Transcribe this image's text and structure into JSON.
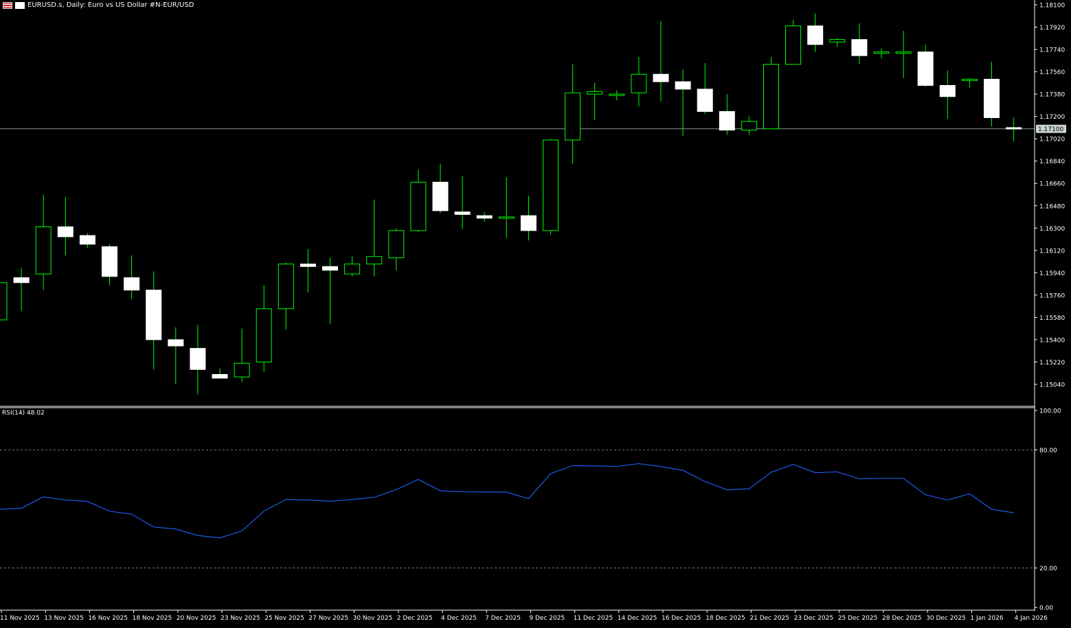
{
  "header": {
    "title": "EURUSD.s, Daily:  Euro vs US Dollar #N-EUR/USD",
    "flag_icon": "us-eu-flag-icon",
    "menu_icon": "chart-menu-icon"
  },
  "rsi": {
    "label": "RSI(14) 48.02",
    "levels": [
      "100.00",
      "80.00",
      "20.00",
      "0.00"
    ]
  },
  "price_axis": {
    "ticks": [
      "1.18100",
      "1.17920",
      "1.17740",
      "1.17560",
      "1.17380",
      "1.17200",
      "1.17020",
      "1.16840",
      "1.16660",
      "1.16480",
      "1.16300",
      "1.16120",
      "1.15940",
      "1.15760",
      "1.15580",
      "1.15400",
      "1.15220",
      "1.15040"
    ],
    "current": "1.17100"
  },
  "time_axis": [
    "11 Nov 2025",
    "13 Nov 2025",
    "16 Nov 2025",
    "18 Nov 2025",
    "20 Nov 2025",
    "23 Nov 2025",
    "25 Nov 2025",
    "27 Nov 2025",
    "30 Nov 2025",
    "2 Dec 2025",
    "4 Dec 2025",
    "7 Dec 2025",
    "9 Dec 2025",
    "11 Dec 2025",
    "14 Dec 2025",
    "16 Dec 2025",
    "18 Dec 2025",
    "21 Dec 2025",
    "23 Dec 2025",
    "25 Dec 2025",
    "28 Dec 2025",
    "30 Dec 2025",
    "1 Jan 2026",
    "4 Jan 2026"
  ],
  "colors": {
    "bull_outline": "#00ff00",
    "body": "#ffffff",
    "wick": "#00ff00",
    "rsi_line": "#1e64ff",
    "grid": "#a0a0a0",
    "text": "#ffffff"
  },
  "chart_data": [
    {
      "type": "candlestick",
      "symbol": "EURUSD.s",
      "timeframe": "Daily",
      "ylim": [
        1.15,
        1.181
      ],
      "current_price": 1.171,
      "candles": [
        {
          "o": 1.1556,
          "h": 1.1589,
          "l": 1.1556,
          "c": 1.1586
        },
        {
          "o": 1.159,
          "h": 1.1598,
          "l": 1.1563,
          "c": 1.1586
        },
        {
          "o": 1.1593,
          "h": 1.1657,
          "l": 1.158,
          "c": 1.1631
        },
        {
          "o": 1.1631,
          "h": 1.1655,
          "l": 1.1608,
          "c": 1.1623
        },
        {
          "o": 1.1624,
          "h": 1.1626,
          "l": 1.1614,
          "c": 1.1617
        },
        {
          "o": 1.1615,
          "h": 1.1617,
          "l": 1.1584,
          "c": 1.1591
        },
        {
          "o": 1.159,
          "h": 1.1608,
          "l": 1.1573,
          "c": 1.158
        },
        {
          "o": 1.158,
          "h": 1.1595,
          "l": 1.1516,
          "c": 1.154
        },
        {
          "o": 1.154,
          "h": 1.155,
          "l": 1.1504,
          "c": 1.1535
        },
        {
          "o": 1.1533,
          "h": 1.1552,
          "l": 1.1496,
          "c": 1.1516
        },
        {
          "o": 1.1512,
          "h": 1.1517,
          "l": 1.1509,
          "c": 1.1509
        },
        {
          "o": 1.151,
          "h": 1.1549,
          "l": 1.1506,
          "c": 1.1521
        },
        {
          "o": 1.1522,
          "h": 1.1584,
          "l": 1.1514,
          "c": 1.1565
        },
        {
          "o": 1.1565,
          "h": 1.1602,
          "l": 1.1548,
          "c": 1.1601
        },
        {
          "o": 1.1601,
          "h": 1.1613,
          "l": 1.1578,
          "c": 1.1599
        },
        {
          "o": 1.1599,
          "h": 1.1606,
          "l": 1.1553,
          "c": 1.1596
        },
        {
          "o": 1.1593,
          "h": 1.1607,
          "l": 1.1591,
          "c": 1.1601
        },
        {
          "o": 1.1601,
          "h": 1.1653,
          "l": 1.1591,
          "c": 1.1607
        },
        {
          "o": 1.1606,
          "h": 1.163,
          "l": 1.1596,
          "c": 1.1628
        },
        {
          "o": 1.1628,
          "h": 1.1677,
          "l": 1.1627,
          "c": 1.1667
        },
        {
          "o": 1.1667,
          "h": 1.1682,
          "l": 1.1642,
          "c": 1.1644
        },
        {
          "o": 1.1643,
          "h": 1.1672,
          "l": 1.1629,
          "c": 1.1641
        },
        {
          "o": 1.164,
          "h": 1.1643,
          "l": 1.1635,
          "c": 1.1638
        },
        {
          "o": 1.1638,
          "h": 1.1671,
          "l": 1.1622,
          "c": 1.1639
        },
        {
          "o": 1.164,
          "h": 1.1656,
          "l": 1.162,
          "c": 1.1628
        },
        {
          "o": 1.1628,
          "h": 1.1702,
          "l": 1.1625,
          "c": 1.1701
        },
        {
          "o": 1.1701,
          "h": 1.1762,
          "l": 1.1682,
          "c": 1.1739
        },
        {
          "o": 1.1738,
          "h": 1.1747,
          "l": 1.1717,
          "c": 1.174
        },
        {
          "o": 1.1737,
          "h": 1.1741,
          "l": 1.1733,
          "c": 1.1738
        },
        {
          "o": 1.1739,
          "h": 1.1768,
          "l": 1.1728,
          "c": 1.1754
        },
        {
          "o": 1.1754,
          "h": 1.1797,
          "l": 1.1732,
          "c": 1.1748
        },
        {
          "o": 1.1748,
          "h": 1.1758,
          "l": 1.1704,
          "c": 1.1742
        },
        {
          "o": 1.1742,
          "h": 1.1763,
          "l": 1.1722,
          "c": 1.1724
        },
        {
          "o": 1.1724,
          "h": 1.1738,
          "l": 1.1705,
          "c": 1.1709
        },
        {
          "o": 1.1709,
          "h": 1.172,
          "l": 1.1705,
          "c": 1.1716
        },
        {
          "o": 1.171,
          "h": 1.1768,
          "l": 1.171,
          "c": 1.1762
        },
        {
          "o": 1.1762,
          "h": 1.1798,
          "l": 1.1762,
          "c": 1.1793
        },
        {
          "o": 1.1793,
          "h": 1.1803,
          "l": 1.1772,
          "c": 1.1778
        },
        {
          "o": 1.178,
          "h": 1.1783,
          "l": 1.1776,
          "c": 1.1782
        },
        {
          "o": 1.1782,
          "h": 1.1795,
          "l": 1.1762,
          "c": 1.1769
        },
        {
          "o": 1.1771,
          "h": 1.1775,
          "l": 1.1767,
          "c": 1.1772
        },
        {
          "o": 1.1772,
          "h": 1.1789,
          "l": 1.1751,
          "c": 1.1772
        },
        {
          "o": 1.1772,
          "h": 1.1778,
          "l": 1.1744,
          "c": 1.1745
        },
        {
          "o": 1.1745,
          "h": 1.1757,
          "l": 1.1718,
          "c": 1.1736
        },
        {
          "o": 1.1749,
          "h": 1.1751,
          "l": 1.1743,
          "c": 1.175
        },
        {
          "o": 1.175,
          "h": 1.1764,
          "l": 1.1712,
          "c": 1.1719
        },
        {
          "o": 1.1711,
          "h": 1.1719,
          "l": 1.17,
          "c": 1.171
        }
      ]
    },
    {
      "type": "line",
      "title": "RSI(14) 48.02",
      "ylim": [
        0,
        100
      ],
      "levels": [
        80,
        20
      ],
      "series": [
        {
          "name": "RSI(14)",
          "values": [
            49.8,
            50.4,
            56.1,
            54.5,
            53.8,
            48.8,
            47.3,
            40.8,
            39.8,
            36.5,
            35.3,
            38.8,
            48.9,
            54.8,
            54.5,
            53.9,
            54.8,
            55.9,
            59.8,
            65.0,
            59.2,
            58.7,
            58.6,
            58.5,
            55.2,
            67.9,
            72.0,
            71.8,
            71.6,
            73.0,
            71.5,
            69.6,
            63.9,
            59.7,
            60.2,
            68.6,
            72.6,
            68.4,
            68.8,
            65.3,
            65.5,
            65.5,
            57.2,
            54.5,
            57.7,
            49.8,
            48.0
          ]
        }
      ]
    }
  ]
}
